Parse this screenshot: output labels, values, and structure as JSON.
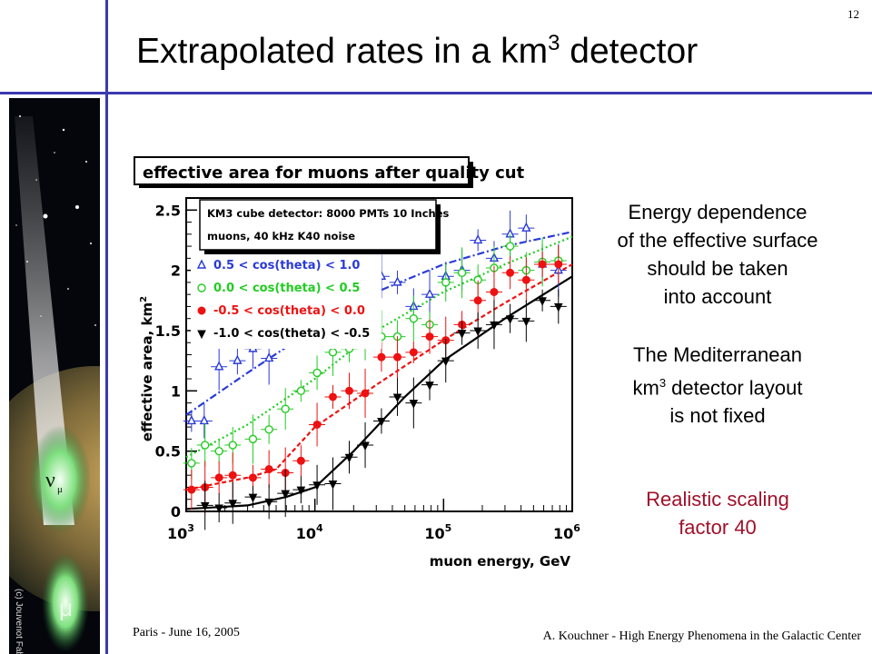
{
  "slide": {
    "page_number": "12",
    "title_main": "Extrapolated rates in a km",
    "title_sup": "3",
    "title_end": " detector",
    "footer_left": "Paris - June 16, 2005",
    "footer_right": "A. Kouchner - High Energy Phenomena in the Galactic Center",
    "side_image_text": {
      "nu": "ν",
      "nu_sub": "μ",
      "mu": "μ",
      "credit": "(c) Jouvenot Fabrice"
    },
    "notes": {
      "note1_lines": [
        "Energy dependence",
        "of the effective surface",
        "should be taken",
        "into account"
      ],
      "note2_line1": "The Mediterranean",
      "note2_km": "km",
      "note2_sup": "3",
      "note2_line2_end": " detector layout",
      "note2_line3": "is not fixed",
      "note3_line1": "Realistic  scaling",
      "note3_line2": "factor 40"
    }
  },
  "chart_data": {
    "type": "scatter",
    "title": "effective area for muons after quality cut",
    "xlabel": "muon energy, GeV",
    "ylabel": "effective area, km",
    "ylabel_sup": "2",
    "x_scale": "log",
    "xlim": [
      1000,
      1000000
    ],
    "ylim": [
      0,
      2.6
    ],
    "x_ticks": [
      {
        "value": 1000,
        "base": "10",
        "exp": "3"
      },
      {
        "value": 10000,
        "base": "10",
        "exp": "4"
      },
      {
        "value": 100000,
        "base": "10",
        "exp": "5"
      },
      {
        "value": 1000000,
        "base": "10",
        "exp": "6"
      }
    ],
    "y_ticks": [
      0,
      0.5,
      1,
      1.5,
      2,
      2.5
    ],
    "info_box": [
      "KM3 cube detector: 8000 PMTs 10 Inches",
      "muons, 40 kHz K40 noise"
    ],
    "legend_placement": "top-left",
    "series": [
      {
        "name": "0.5 < cos(theta) < 1.0",
        "color": "#2a3ad8",
        "marker": "triangle-up-open",
        "points": [
          [
            1100,
            0.75
          ],
          [
            1380,
            0.75
          ],
          [
            1800,
            1.2
          ],
          [
            2500,
            1.25
          ],
          [
            3300,
            1.35
          ],
          [
            4400,
            1.27
          ],
          [
            5900,
            1.55
          ],
          [
            7800,
            1.6
          ],
          [
            10400,
            1.65
          ],
          [
            13800,
            1.55
          ],
          [
            18500,
            1.5
          ],
          [
            24600,
            1.75
          ],
          [
            32900,
            1.95
          ],
          [
            43800,
            1.9
          ],
          [
            58500,
            1.7
          ],
          [
            78000,
            1.8
          ],
          [
            104000,
            1.95
          ],
          [
            139000,
            2.0
          ],
          [
            185000,
            2.25
          ],
          [
            247000,
            2.1
          ],
          [
            329000,
            2.3
          ],
          [
            439000,
            2.35
          ],
          [
            586000,
            2.05
          ],
          [
            781000,
            2.0
          ]
        ],
        "fit": [
          [
            1000,
            0.8
          ],
          [
            3000,
            1.15
          ],
          [
            10000,
            1.52
          ],
          [
            30000,
            1.82
          ],
          [
            100000,
            2.05
          ],
          [
            300000,
            2.2
          ],
          [
            1000000,
            2.32
          ]
        ]
      },
      {
        "name": "0.0 < cos(theta) < 0.5",
        "color": "#22cc22",
        "marker": "circle-open",
        "points": [
          [
            1100,
            0.4
          ],
          [
            1400,
            0.55
          ],
          [
            1800,
            0.5
          ],
          [
            2300,
            0.55
          ],
          [
            3300,
            0.6
          ],
          [
            4400,
            0.68
          ],
          [
            5900,
            0.85
          ],
          [
            7800,
            1.0
          ],
          [
            10400,
            1.15
          ],
          [
            13800,
            1.32
          ],
          [
            18500,
            1.35
          ],
          [
            24600,
            1.42
          ],
          [
            32900,
            1.45
          ],
          [
            43800,
            1.45
          ],
          [
            58500,
            1.6
          ],
          [
            78000,
            1.55
          ],
          [
            104000,
            1.9
          ],
          [
            139000,
            1.98
          ],
          [
            185000,
            1.92
          ],
          [
            247000,
            2.02
          ],
          [
            329000,
            2.2
          ],
          [
            439000,
            2.0
          ],
          [
            586000,
            2.07
          ],
          [
            781000,
            2.08
          ]
        ],
        "fit": [
          [
            1000,
            0.45
          ],
          [
            3000,
            0.72
          ],
          [
            10000,
            1.1
          ],
          [
            30000,
            1.5
          ],
          [
            100000,
            1.82
          ],
          [
            300000,
            2.05
          ],
          [
            1000000,
            2.28
          ]
        ]
      },
      {
        "name": "-0.5 < cos(theta) < 0.0",
        "color": "#ee1111",
        "marker": "circle-filled",
        "points": [
          [
            1100,
            0.18
          ],
          [
            1400,
            0.2
          ],
          [
            1800,
            0.28
          ],
          [
            2300,
            0.3
          ],
          [
            3300,
            0.28
          ],
          [
            4400,
            0.35
          ],
          [
            5900,
            0.32
          ],
          [
            7800,
            0.42
          ],
          [
            10400,
            0.72
          ],
          [
            13800,
            0.95
          ],
          [
            18500,
            1.0
          ],
          [
            24600,
            0.98
          ],
          [
            32900,
            1.28
          ],
          [
            43800,
            1.28
          ],
          [
            58500,
            1.32
          ],
          [
            78000,
            1.45
          ],
          [
            104000,
            1.42
          ],
          [
            139000,
            1.55
          ],
          [
            185000,
            1.75
          ],
          [
            247000,
            1.82
          ],
          [
            329000,
            1.98
          ],
          [
            439000,
            1.92
          ],
          [
            586000,
            2.05
          ],
          [
            781000,
            2.05
          ]
        ],
        "fit": [
          [
            1000,
            0.18
          ],
          [
            3000,
            0.28
          ],
          [
            5000,
            0.35
          ],
          [
            10000,
            0.7
          ],
          [
            30000,
            1.05
          ],
          [
            100000,
            1.42
          ],
          [
            300000,
            1.73
          ],
          [
            1000000,
            2.05
          ]
        ]
      },
      {
        "name": "-1.0 < cos(theta) < -0.5",
        "color": "#000000",
        "marker": "triangle-down-filled",
        "points": [
          [
            1400,
            0.05
          ],
          [
            1800,
            0.03
          ],
          [
            2300,
            0.07
          ],
          [
            3300,
            0.12
          ],
          [
            4400,
            0.08
          ],
          [
            5900,
            0.15
          ],
          [
            7800,
            0.18
          ],
          [
            10400,
            0.22
          ],
          [
            13800,
            0.23
          ],
          [
            18500,
            0.45
          ],
          [
            24600,
            0.55
          ],
          [
            32900,
            0.75
          ],
          [
            43800,
            0.95
          ],
          [
            58500,
            0.9
          ],
          [
            78000,
            1.05
          ],
          [
            104000,
            1.25
          ],
          [
            139000,
            1.48
          ],
          [
            185000,
            1.5
          ],
          [
            247000,
            1.55
          ],
          [
            329000,
            1.6
          ],
          [
            439000,
            1.58
          ],
          [
            586000,
            1.75
          ],
          [
            781000,
            1.7
          ]
        ],
        "fit": [
          [
            1000,
            0.02
          ],
          [
            3000,
            0.05
          ],
          [
            6000,
            0.12
          ],
          [
            10000,
            0.2
          ],
          [
            20000,
            0.5
          ],
          [
            50000,
            0.95
          ],
          [
            100000,
            1.25
          ],
          [
            300000,
            1.6
          ],
          [
            1000000,
            1.95
          ]
        ]
      }
    ]
  }
}
